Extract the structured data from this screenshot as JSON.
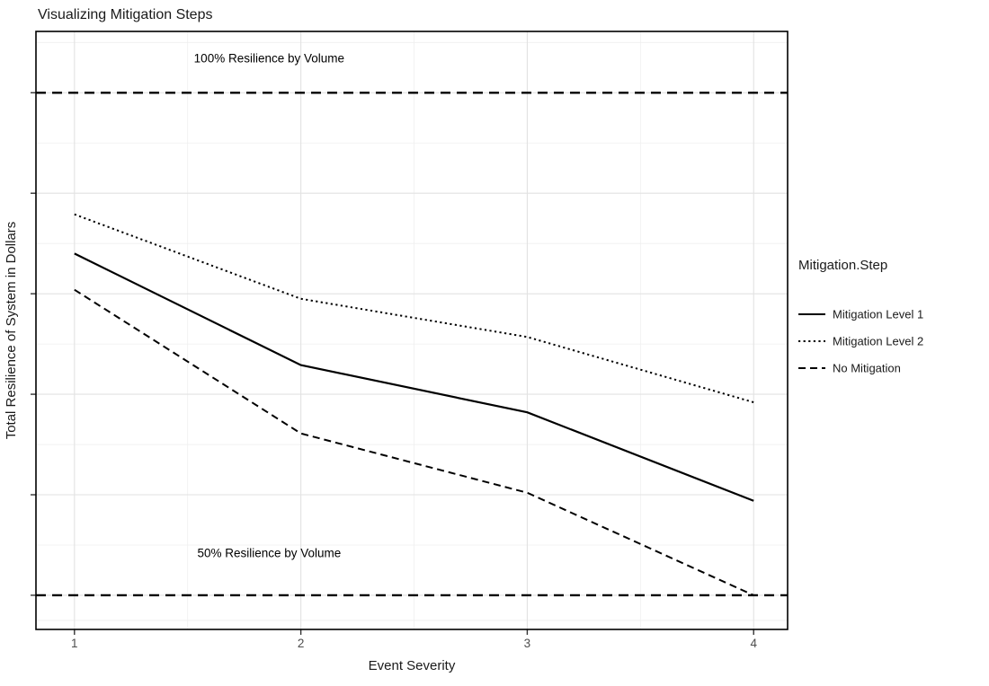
{
  "page": {
    "background": "#ffffff",
    "foreground": "#000000",
    "grid_major_color": "#e2e2e2",
    "grid_minor_color": "#efefef"
  },
  "chart_data": {
    "type": "line",
    "title": "Visualizing Mitigation Steps",
    "xlabel": "Event Severity",
    "ylabel": "Total Resilience of System in Dollars",
    "legend_title": "Mitigation.Step",
    "legend_position": "right",
    "grid": true,
    "x": [
      1,
      2,
      3,
      4
    ],
    "x_tick_labels": [
      "1",
      "2",
      "3",
      "4"
    ],
    "y_tick_labels": [],
    "xlim": [
      0.83,
      4.15
    ],
    "ylim": [
      0.466,
      1.061
    ],
    "grid_major_x": [
      1,
      2,
      3,
      4
    ],
    "grid_minor_x": [
      1.5,
      2.5,
      3.5
    ],
    "grid_major_y": [
      0.5,
      0.6,
      0.7,
      0.8,
      0.9,
      1.0
    ],
    "grid_minor_y": [
      0.475,
      0.55,
      0.65,
      0.75,
      0.85,
      0.95,
      1.05
    ],
    "series": [
      {
        "name": "Mitigation Level 1",
        "linetype": "solid",
        "color": "#000000",
        "values": [
          0.84,
          0.729,
          0.682,
          0.594
        ]
      },
      {
        "name": "Mitigation Level 2",
        "linetype": "dotted",
        "color": "#000000",
        "values": [
          0.879,
          0.795,
          0.757,
          0.692
        ]
      },
      {
        "name": "No Mitigation",
        "linetype": "dashed",
        "color": "#000000",
        "values": [
          0.804,
          0.661,
          0.602,
          0.5
        ]
      }
    ],
    "reference_lines": [
      {
        "value": 1.0,
        "linetype": "longdash",
        "color": "#000000"
      },
      {
        "value": 0.5,
        "linetype": "longdash",
        "color": "#000000"
      }
    ],
    "annotations": [
      {
        "text": "100% Resilience by Volume",
        "x": 1.86,
        "y": 1.03
      },
      {
        "text": "50% Resilience by Volume",
        "x": 1.86,
        "y": 0.538
      }
    ],
    "y_value_note": "Y axis shows tick marks but no numeric labels; series values are estimated as fractions of the 100% Resilience by Volume reference line."
  }
}
